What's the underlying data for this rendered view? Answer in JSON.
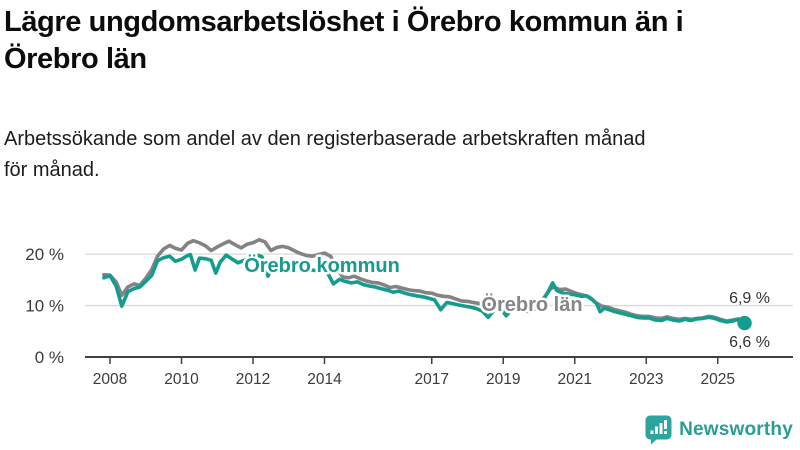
{
  "header": {
    "title_lines": [
      "Lägre ungdomsarbetslöshet i Örebro kommun än i",
      "Örebro län"
    ],
    "subtitle_lines": [
      "Arbetssökande som andel av den registerbaserade arbetskraften månad",
      "för månad."
    ]
  },
  "chart": {
    "colors": {
      "kommun": "#149c8e",
      "lan": "#838383",
      "grid": "#d9d9d9",
      "axis": "#404040",
      "tick_text": "#3b3b3b"
    },
    "series_labels": {
      "kommun": "Örebro kommun",
      "lan": "Örebro län"
    },
    "end_labels": {
      "lan": "6,9 %",
      "kommun": "6,6 %"
    },
    "y_ticks": [
      {
        "value": 0,
        "label": "0 %"
      },
      {
        "value": 10,
        "label": "10 %"
      },
      {
        "value": 20,
        "label": "20 %"
      }
    ],
    "x_ticks": [
      {
        "value": 2008,
        "label": "2008"
      },
      {
        "value": 2010,
        "label": "2010"
      },
      {
        "value": 2012,
        "label": "2012"
      },
      {
        "value": 2014,
        "label": "2014"
      },
      {
        "value": 2017,
        "label": "2017"
      },
      {
        "value": 2019,
        "label": "2019"
      },
      {
        "value": 2021,
        "label": "2021"
      },
      {
        "value": 2023,
        "label": "2023"
      },
      {
        "value": 2025,
        "label": "2025"
      }
    ]
  },
  "chart_data": {
    "type": "line",
    "title": "Lägre ungdomsarbetslöshet i Örebro kommun än i Örebro län",
    "subtitle": "Arbetssökande som andel av den registerbaserade arbetskraften månad för månad.",
    "unit": "%",
    "xlim": [
      2007.6,
      2026.1
    ],
    "ylim": [
      0,
      24
    ],
    "grid": "horizontal",
    "legend_position": "inline-labels",
    "series": [
      {
        "name": "Örebro län",
        "color": "#838383",
        "end_label": "6,9 %",
        "end_value": 6.9,
        "points": [
          [
            2007.83,
            16.0
          ],
          [
            2008.0,
            15.9
          ],
          [
            2008.17,
            14.6
          ],
          [
            2008.33,
            12.0
          ],
          [
            2008.5,
            13.6
          ],
          [
            2008.67,
            14.2
          ],
          [
            2008.83,
            13.9
          ],
          [
            2009.0,
            15.3
          ],
          [
            2009.17,
            17.0
          ],
          [
            2009.33,
            19.6
          ],
          [
            2009.5,
            21.0
          ],
          [
            2009.67,
            21.7
          ],
          [
            2009.83,
            21.1
          ],
          [
            2010.0,
            20.8
          ],
          [
            2010.17,
            22.1
          ],
          [
            2010.33,
            22.6
          ],
          [
            2010.5,
            22.2
          ],
          [
            2010.67,
            21.6
          ],
          [
            2010.83,
            20.7
          ],
          [
            2011.0,
            21.4
          ],
          [
            2011.17,
            22.0
          ],
          [
            2011.33,
            22.5
          ],
          [
            2011.5,
            21.8
          ],
          [
            2011.67,
            21.2
          ],
          [
            2011.83,
            21.9
          ],
          [
            2012.0,
            22.2
          ],
          [
            2012.17,
            22.8
          ],
          [
            2012.33,
            22.4
          ],
          [
            2012.5,
            20.7
          ],
          [
            2012.67,
            21.3
          ],
          [
            2012.83,
            21.5
          ],
          [
            2013.0,
            21.2
          ],
          [
            2013.17,
            20.6
          ],
          [
            2013.33,
            20.1
          ],
          [
            2013.5,
            19.7
          ],
          [
            2013.67,
            19.6
          ],
          [
            2013.83,
            19.9
          ],
          [
            2014.0,
            20.2
          ],
          [
            2014.17,
            19.6
          ],
          [
            2014.33,
            17.5
          ],
          [
            2014.5,
            15.6
          ],
          [
            2014.67,
            15.4
          ],
          [
            2014.83,
            15.7
          ],
          [
            2015.0,
            15.2
          ],
          [
            2015.17,
            14.8
          ],
          [
            2015.33,
            14.5
          ],
          [
            2015.5,
            14.4
          ],
          [
            2015.67,
            14.0
          ],
          [
            2015.83,
            13.5
          ],
          [
            2016.0,
            13.7
          ],
          [
            2016.17,
            13.4
          ],
          [
            2016.33,
            13.1
          ],
          [
            2016.5,
            12.9
          ],
          [
            2016.67,
            12.8
          ],
          [
            2016.83,
            12.5
          ],
          [
            2017.0,
            12.4
          ],
          [
            2017.17,
            12.0
          ],
          [
            2017.33,
            11.8
          ],
          [
            2017.5,
            11.7
          ],
          [
            2017.67,
            11.3
          ],
          [
            2017.83,
            10.9
          ],
          [
            2018.0,
            10.8
          ],
          [
            2018.17,
            10.6
          ],
          [
            2018.33,
            10.4
          ],
          [
            2018.5,
            10.3
          ],
          [
            2018.67,
            10.1
          ],
          [
            2018.83,
            10.0
          ],
          [
            2019.0,
            10.2
          ],
          [
            2019.17,
            10.0
          ],
          [
            2019.33,
            9.8
          ],
          [
            2019.5,
            9.7
          ],
          [
            2019.67,
            9.6
          ],
          [
            2019.83,
            9.9
          ],
          [
            2020.0,
            10.3
          ],
          [
            2020.17,
            11.8
          ],
          [
            2020.33,
            13.3
          ],
          [
            2020.42,
            13.6
          ],
          [
            2020.58,
            13.1
          ],
          [
            2020.75,
            13.2
          ],
          [
            2020.92,
            12.7
          ],
          [
            2021.08,
            12.3
          ],
          [
            2021.25,
            12.0
          ],
          [
            2021.42,
            11.6
          ],
          [
            2021.58,
            10.6
          ],
          [
            2021.75,
            9.9
          ],
          [
            2021.92,
            9.7
          ],
          [
            2022.08,
            9.3
          ],
          [
            2022.25,
            9.0
          ],
          [
            2022.42,
            8.7
          ],
          [
            2022.58,
            8.3
          ],
          [
            2022.75,
            8.0
          ],
          [
            2022.92,
            7.9
          ],
          [
            2023.08,
            7.9
          ],
          [
            2023.25,
            7.6
          ],
          [
            2023.42,
            7.5
          ],
          [
            2023.58,
            7.8
          ],
          [
            2023.75,
            7.5
          ],
          [
            2023.92,
            7.3
          ],
          [
            2024.08,
            7.5
          ],
          [
            2024.25,
            7.3
          ],
          [
            2024.42,
            7.5
          ],
          [
            2024.58,
            7.6
          ],
          [
            2024.75,
            7.9
          ],
          [
            2024.92,
            7.7
          ],
          [
            2025.08,
            7.3
          ],
          [
            2025.25,
            7.0
          ],
          [
            2025.42,
            7.2
          ],
          [
            2025.58,
            7.4
          ],
          [
            2025.75,
            6.9
          ]
        ]
      },
      {
        "name": "Örebro kommun",
        "color": "#149c8e",
        "end_label": "6,6 %",
        "end_value": 6.6,
        "end_dot": true,
        "points": [
          [
            2007.83,
            15.4
          ],
          [
            2008.0,
            15.8
          ],
          [
            2008.17,
            13.8
          ],
          [
            2008.33,
            9.9
          ],
          [
            2008.5,
            12.7
          ],
          [
            2008.67,
            13.3
          ],
          [
            2008.83,
            13.6
          ],
          [
            2009.0,
            14.7
          ],
          [
            2009.17,
            15.9
          ],
          [
            2009.33,
            18.7
          ],
          [
            2009.5,
            19.3
          ],
          [
            2009.67,
            19.6
          ],
          [
            2009.83,
            18.6
          ],
          [
            2010.0,
            19.0
          ],
          [
            2010.17,
            19.7
          ],
          [
            2010.25,
            19.9
          ],
          [
            2010.38,
            16.9
          ],
          [
            2010.5,
            19.2
          ],
          [
            2010.67,
            19.1
          ],
          [
            2010.83,
            18.8
          ],
          [
            2010.96,
            16.3
          ],
          [
            2011.08,
            18.4
          ],
          [
            2011.25,
            19.8
          ],
          [
            2011.42,
            19.0
          ],
          [
            2011.58,
            18.3
          ],
          [
            2011.75,
            18.8
          ],
          [
            2011.92,
            19.3
          ],
          [
            2012.08,
            19.9
          ],
          [
            2012.25,
            19.5
          ],
          [
            2012.42,
            15.7
          ],
          [
            2012.58,
            18.4
          ],
          [
            2012.75,
            18.8
          ],
          [
            2012.92,
            18.6
          ],
          [
            2013.08,
            18.2
          ],
          [
            2013.25,
            17.8
          ],
          [
            2013.42,
            17.3
          ],
          [
            2013.58,
            17.0
          ],
          [
            2013.75,
            16.8
          ],
          [
            2013.92,
            17.1
          ],
          [
            2014.08,
            16.4
          ],
          [
            2014.25,
            14.2
          ],
          [
            2014.42,
            15.1
          ],
          [
            2014.58,
            14.7
          ],
          [
            2014.75,
            14.4
          ],
          [
            2014.92,
            14.6
          ],
          [
            2015.08,
            14.1
          ],
          [
            2015.25,
            13.8
          ],
          [
            2015.42,
            13.6
          ],
          [
            2015.58,
            13.3
          ],
          [
            2015.75,
            13.0
          ],
          [
            2015.92,
            12.6
          ],
          [
            2016.08,
            12.8
          ],
          [
            2016.25,
            12.4
          ],
          [
            2016.42,
            12.1
          ],
          [
            2016.58,
            11.9
          ],
          [
            2016.75,
            11.7
          ],
          [
            2016.92,
            11.4
          ],
          [
            2017.08,
            11.1
          ],
          [
            2017.25,
            9.2
          ],
          [
            2017.42,
            10.6
          ],
          [
            2017.58,
            10.4
          ],
          [
            2017.75,
            10.1
          ],
          [
            2017.92,
            9.9
          ],
          [
            2018.08,
            9.7
          ],
          [
            2018.25,
            9.4
          ],
          [
            2018.42,
            8.9
          ],
          [
            2018.58,
            7.7
          ],
          [
            2018.75,
            9.2
          ],
          [
            2018.92,
            9.5
          ],
          [
            2019.08,
            8.0
          ],
          [
            2019.25,
            9.3
          ],
          [
            2019.42,
            9.2
          ],
          [
            2019.58,
            9.0
          ],
          [
            2019.75,
            8.8
          ],
          [
            2019.92,
            9.5
          ],
          [
            2020.08,
            10.6
          ],
          [
            2020.25,
            12.6
          ],
          [
            2020.38,
            14.4
          ],
          [
            2020.5,
            12.9
          ],
          [
            2020.67,
            12.4
          ],
          [
            2020.83,
            12.2
          ],
          [
            2021.0,
            12.1
          ],
          [
            2021.17,
            11.8
          ],
          [
            2021.33,
            11.9
          ],
          [
            2021.5,
            11.1
          ],
          [
            2021.62,
            10.3
          ],
          [
            2021.71,
            8.8
          ],
          [
            2021.83,
            9.5
          ],
          [
            2021.96,
            9.2
          ],
          [
            2022.08,
            8.9
          ],
          [
            2022.25,
            8.6
          ],
          [
            2022.42,
            8.3
          ],
          [
            2022.58,
            8.0
          ],
          [
            2022.75,
            7.7
          ],
          [
            2022.92,
            7.6
          ],
          [
            2023.08,
            7.6
          ],
          [
            2023.25,
            7.2
          ],
          [
            2023.42,
            7.1
          ],
          [
            2023.58,
            7.5
          ],
          [
            2023.75,
            7.2
          ],
          [
            2023.92,
            7.0
          ],
          [
            2024.08,
            7.3
          ],
          [
            2024.25,
            7.1
          ],
          [
            2024.42,
            7.4
          ],
          [
            2024.58,
            7.5
          ],
          [
            2024.75,
            7.7
          ],
          [
            2024.92,
            7.5
          ],
          [
            2025.08,
            7.1
          ],
          [
            2025.25,
            6.8
          ],
          [
            2025.42,
            7.0
          ],
          [
            2025.58,
            7.3
          ],
          [
            2025.75,
            6.6
          ]
        ]
      }
    ]
  },
  "footer": {
    "brand": "Newsworthy",
    "logo_icon": "bar-chart-speech-bubble",
    "brand_color": "#2b9c95"
  }
}
